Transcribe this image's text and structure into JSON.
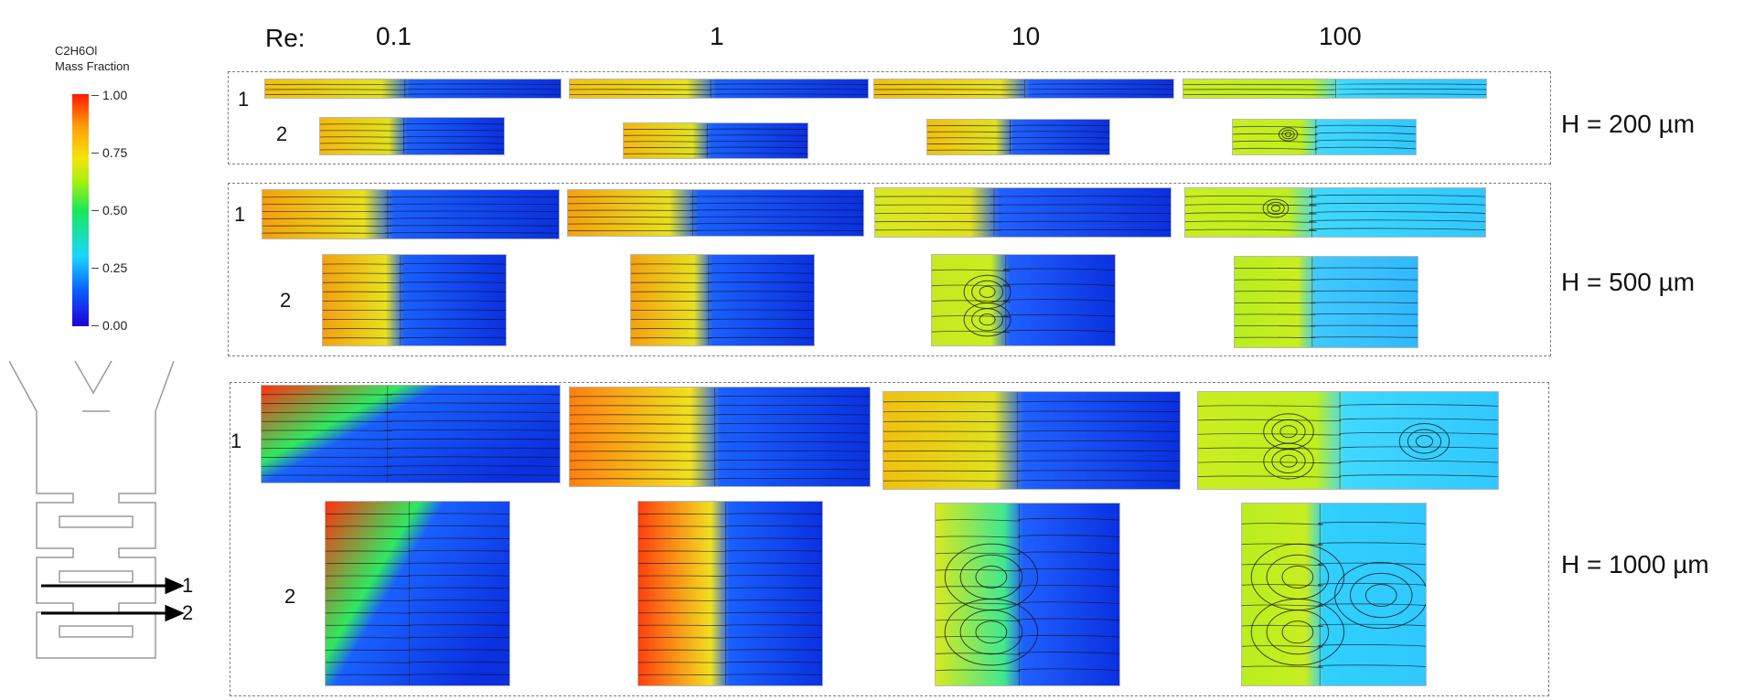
{
  "legend": {
    "title_line1": "C2H6Ol",
    "title_line2": "Mass Fraction",
    "ticks": [
      "1.00",
      "0.75",
      "0.50",
      "0.25",
      "0.00"
    ]
  },
  "re_label": "Re:",
  "re_values": [
    "0.1",
    "1",
    "10",
    "100"
  ],
  "heights": [
    "H = 200 µm",
    "H = 500 µm",
    "H = 1000 µm"
  ],
  "row_labels": [
    "1",
    "2"
  ],
  "schematic_labels": [
    "1",
    "2"
  ]
}
